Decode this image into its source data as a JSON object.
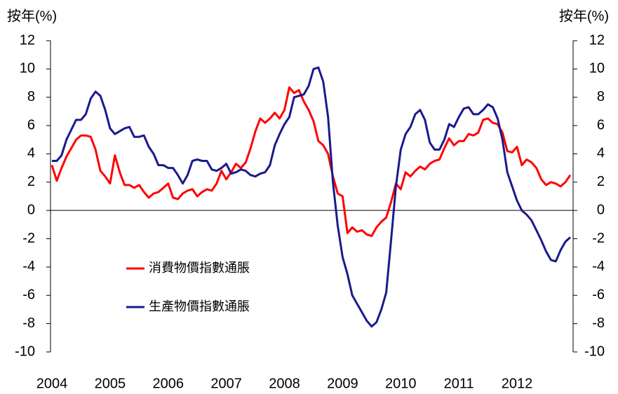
{
  "chart_data": {
    "type": "line",
    "y_label": "按年(%)",
    "y2_label": "按年(%)",
    "categories": [
      "2004",
      null,
      null,
      null,
      null,
      null,
      null,
      null,
      null,
      null,
      null,
      null,
      "2005",
      null,
      null,
      null,
      null,
      null,
      null,
      null,
      null,
      null,
      null,
      null,
      "2006",
      null,
      null,
      null,
      null,
      null,
      null,
      null,
      null,
      null,
      null,
      null,
      "2007",
      null,
      null,
      null,
      null,
      null,
      null,
      null,
      null,
      null,
      null,
      null,
      "2008",
      null,
      null,
      null,
      null,
      null,
      null,
      null,
      null,
      null,
      null,
      null,
      "2009",
      null,
      null,
      null,
      null,
      null,
      null,
      null,
      null,
      null,
      null,
      null,
      "2010",
      null,
      null,
      null,
      null,
      null,
      null,
      null,
      null,
      null,
      null,
      null,
      "2011",
      null,
      null,
      null,
      null,
      null,
      null,
      null,
      null,
      null,
      null,
      null,
      "2012",
      null,
      null,
      null,
      null,
      null,
      null,
      null,
      null,
      null,
      null,
      null
    ],
    "series": [
      {
        "name": "消費物價指數通脹",
        "color": "#ff0000",
        "values": [
          3.2,
          2.1,
          3.0,
          3.8,
          4.4,
          5.0,
          5.3,
          5.3,
          5.2,
          4.3,
          2.8,
          2.4,
          1.9,
          3.9,
          2.7,
          1.8,
          1.8,
          1.6,
          1.8,
          1.3,
          0.9,
          1.2,
          1.3,
          1.6,
          1.9,
          0.9,
          0.8,
          1.2,
          1.4,
          1.5,
          1.0,
          1.3,
          1.5,
          1.4,
          1.9,
          2.8,
          2.2,
          2.7,
          3.3,
          3.0,
          3.4,
          4.4,
          5.6,
          6.5,
          6.2,
          6.5,
          6.9,
          6.5,
          7.1,
          8.7,
          8.3,
          8.5,
          7.7,
          7.1,
          6.3,
          4.9,
          4.6,
          4.0,
          2.4,
          1.2,
          1.0,
          -1.6,
          -1.2,
          -1.5,
          -1.4,
          -1.7,
          -1.8,
          -1.2,
          -0.8,
          -0.5,
          0.6,
          1.9,
          1.5,
          2.7,
          2.4,
          2.8,
          3.1,
          2.9,
          3.3,
          3.5,
          3.6,
          4.4,
          5.1,
          4.6,
          4.9,
          4.9,
          5.4,
          5.3,
          5.5,
          6.4,
          6.5,
          6.2,
          6.1,
          5.5,
          4.2,
          4.1,
          4.5,
          3.2,
          3.6,
          3.4,
          3.0,
          2.2,
          1.8,
          2.0,
          1.9,
          1.7,
          2.0,
          2.5
        ]
      },
      {
        "name": "生產物價指數通脹",
        "color": "#1a1a8c",
        "values": [
          3.5,
          3.5,
          3.9,
          5.0,
          5.7,
          6.4,
          6.4,
          6.8,
          7.9,
          8.4,
          8.1,
          7.1,
          5.8,
          5.4,
          5.6,
          5.8,
          5.9,
          5.2,
          5.2,
          5.3,
          4.5,
          4.0,
          3.2,
          3.2,
          3.0,
          3.0,
          2.5,
          1.9,
          2.5,
          3.5,
          3.6,
          3.5,
          3.5,
          2.9,
          2.8,
          3.0,
          3.3,
          2.6,
          2.7,
          2.9,
          2.8,
          2.5,
          2.4,
          2.6,
          2.7,
          3.2,
          4.6,
          5.4,
          6.1,
          6.6,
          8.0,
          8.1,
          8.2,
          8.8,
          10.0,
          10.1,
          9.1,
          6.6,
          2.0,
          -1.1,
          -3.3,
          -4.5,
          -6.0,
          -6.6,
          -7.2,
          -7.8,
          -8.2,
          -7.9,
          -7.0,
          -5.8,
          -2.1,
          1.7,
          4.3,
          5.4,
          5.9,
          6.8,
          7.1,
          6.4,
          4.8,
          4.3,
          4.3,
          5.0,
          6.1,
          5.9,
          6.6,
          7.2,
          7.3,
          6.8,
          6.8,
          7.1,
          7.5,
          7.3,
          6.5,
          5.0,
          2.7,
          1.7,
          0.7,
          0.0,
          -0.3,
          -0.7,
          -1.4,
          -2.1,
          -2.9,
          -3.5,
          -3.6,
          -2.8,
          -2.2,
          -1.9
        ]
      }
    ],
    "ylim": [
      -10,
      12
    ],
    "yticks": [
      -10,
      -8,
      -6,
      -4,
      -2,
      0,
      2,
      4,
      6,
      8,
      10,
      12
    ],
    "y2lim": [
      -10,
      12
    ],
    "y2ticks": [
      -10,
      -8,
      -6,
      -4,
      -2,
      0,
      2,
      4,
      6,
      8,
      10,
      12
    ],
    "grid": false
  }
}
